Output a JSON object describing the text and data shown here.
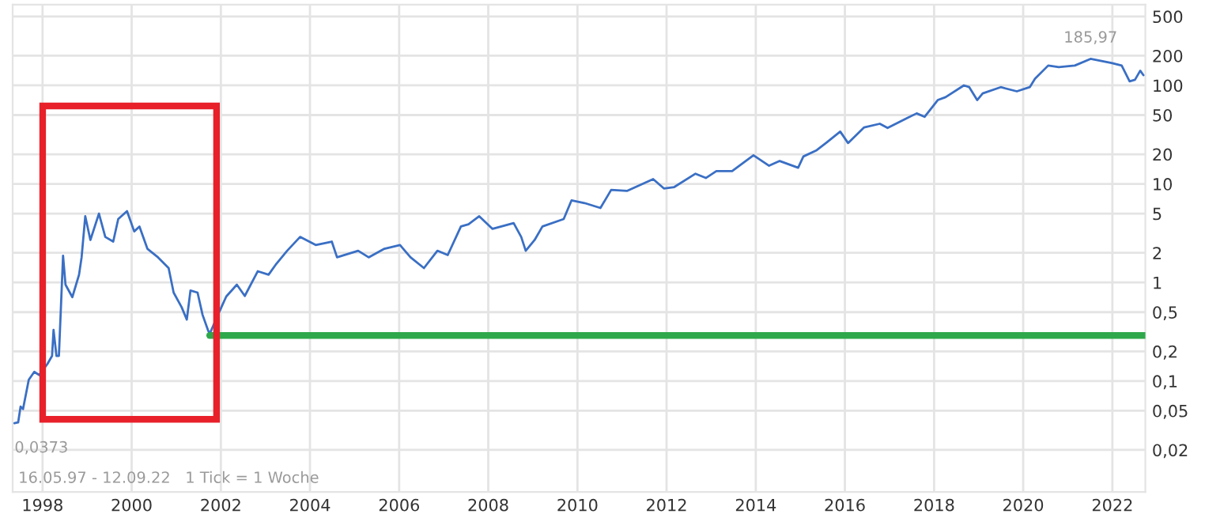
{
  "chart_data": {
    "type": "line",
    "log": "y",
    "grid": true,
    "marker": "none",
    "line_style": "solid",
    "xlim": [
      "1997-05-01",
      "2022-09-28"
    ],
    "xticks": [
      "1998",
      "2000",
      "2002",
      "2004",
      "2006",
      "2008",
      "2010",
      "2012",
      "2014",
      "2016",
      "2018",
      "2020",
      "2022"
    ],
    "ylim": [
      0.0075,
      660
    ],
    "yticks": [
      {
        "value": 0.02,
        "label": "0,02"
      },
      {
        "value": 0.05,
        "label": "0,05"
      },
      {
        "value": 0.1,
        "label": "0,1"
      },
      {
        "value": 0.2,
        "label": "0,2"
      },
      {
        "value": 0.5,
        "label": "0,5"
      },
      1,
      2,
      5,
      10,
      20,
      50,
      100,
      200,
      500
    ],
    "annotations": [
      {
        "text": "0,0373",
        "x": "1997-05-16",
        "y": 0.0373
      },
      {
        "text": "185,97",
        "x": "2021-07-06",
        "y": 185.97
      },
      "16.05.97 - 12.09.22   1 Tick = 1 Woche"
    ],
    "series": [
      {
        "color": "#3a6fc4",
        "x": [
          "1997-05-16",
          "1997-06-15",
          "1997-07-05",
          "1997-07-25",
          "1997-09-10",
          "1997-10-25",
          "1997-12-05",
          "1998-02-10",
          "1998-03-20",
          "1998-04-01",
          "1998-04-25",
          "1998-05-15",
          "1998-06-18",
          "1998-07-08",
          "1998-09-02",
          "1998-10-27",
          "1998-11-17",
          "1998-12-17",
          "1999-01-28",
          "1999-04-08",
          "1999-05-30",
          "1999-08-03",
          "1999-09-13",
          "1999-11-24",
          "2000-01-22",
          "2000-03-05",
          "2000-05-09",
          "2000-08-04",
          "2000-10-30",
          "2000-12-10",
          "2001-02-14",
          "2001-03-28",
          "2001-04-27",
          "2001-06-24",
          "2001-08-04",
          "2001-09-17",
          "2001-10-01",
          "2001-11-21",
          "2002-01-05",
          "2002-02-14",
          "2002-05-12",
          "2002-07-16",
          "2002-10-30",
          "2003-01-27",
          "2003-04-01",
          "2003-06-28",
          "2003-10-12",
          "2004-02-17",
          "2004-06-28",
          "2004-08-10",
          "2005-01-30",
          "2005-04-26",
          "2005-09-02",
          "2006-01-08",
          "2006-04-04",
          "2006-07-23",
          "2006-11-10",
          "2007-02-03",
          "2007-05-22",
          "2007-07-23",
          "2007-10-19",
          "2008-02-05",
          "2008-07-27",
          "2008-09-27",
          "2008-11-03",
          "2009-01-15",
          "2009-03-20",
          "2009-09-10",
          "2009-11-13",
          "2010-02-28",
          "2010-07-08",
          "2010-10-04",
          "2011-02-10",
          "2011-09-13",
          "2011-12-10",
          "2012-03-04",
          "2012-08-25",
          "2012-11-18",
          "2013-02-12",
          "2013-06-21",
          "2013-12-13",
          "2014-04-20",
          "2014-07-16",
          "2014-12-14",
          "2015-01-26",
          "2015-05-15",
          "2015-08-07",
          "2015-11-24",
          "2016-01-27",
          "2016-06-07",
          "2016-10-13",
          "2016-12-16",
          "2017-05-16",
          "2017-08-11",
          "2017-10-16",
          "2018-01-31",
          "2018-04-05",
          "2018-09-02",
          "2018-10-16",
          "2018-12-20",
          "2019-02-03",
          "2019-07-01",
          "2019-11-10",
          "2020-02-24",
          "2020-04-07",
          "2020-07-24",
          "2020-10-19",
          "2021-02-27",
          "2021-07-06",
          "2021-12-24",
          "2022-03-18",
          "2022-05-22",
          "2022-07-05",
          "2022-08-17",
          "2022-09-12"
        ],
        "values": [
          0.0373,
          0.038,
          0.055,
          0.052,
          0.103,
          0.124,
          0.115,
          0.149,
          0.18,
          0.33,
          0.18,
          0.18,
          1.87,
          0.95,
          0.71,
          1.2,
          1.8,
          4.7,
          2.7,
          5.0,
          2.9,
          2.6,
          4.4,
          5.3,
          3.3,
          3.7,
          2.2,
          1.8,
          1.4,
          0.79,
          0.56,
          0.42,
          0.83,
          0.79,
          0.47,
          0.33,
          0.3,
          0.42,
          0.56,
          0.72,
          0.95,
          0.73,
          1.3,
          1.2,
          1.55,
          2.1,
          2.9,
          2.4,
          2.6,
          1.8,
          2.1,
          1.8,
          2.2,
          2.4,
          1.8,
          1.4,
          2.1,
          1.9,
          3.7,
          3.9,
          4.7,
          3.5,
          4.0,
          2.9,
          2.1,
          2.7,
          3.7,
          4.4,
          6.8,
          6.4,
          5.7,
          8.7,
          8.5,
          11.2,
          9.0,
          9.3,
          12.7,
          11.5,
          13.5,
          13.5,
          19.5,
          15.3,
          17.1,
          14.6,
          19,
          22,
          26.5,
          34,
          26,
          37.5,
          40.8,
          37,
          46,
          52,
          48,
          71,
          76,
          100,
          96,
          71,
          83,
          96,
          87,
          96,
          117,
          159,
          153,
          159,
          185.97,
          169,
          159,
          110,
          114,
          141,
          127
        ]
      },
      {
        "color": "#2ea84a",
        "x": [
          "2001-10-01",
          "2022-09-28"
        ],
        "values": [
          0.29,
          0.29
        ]
      }
    ]
  }
}
